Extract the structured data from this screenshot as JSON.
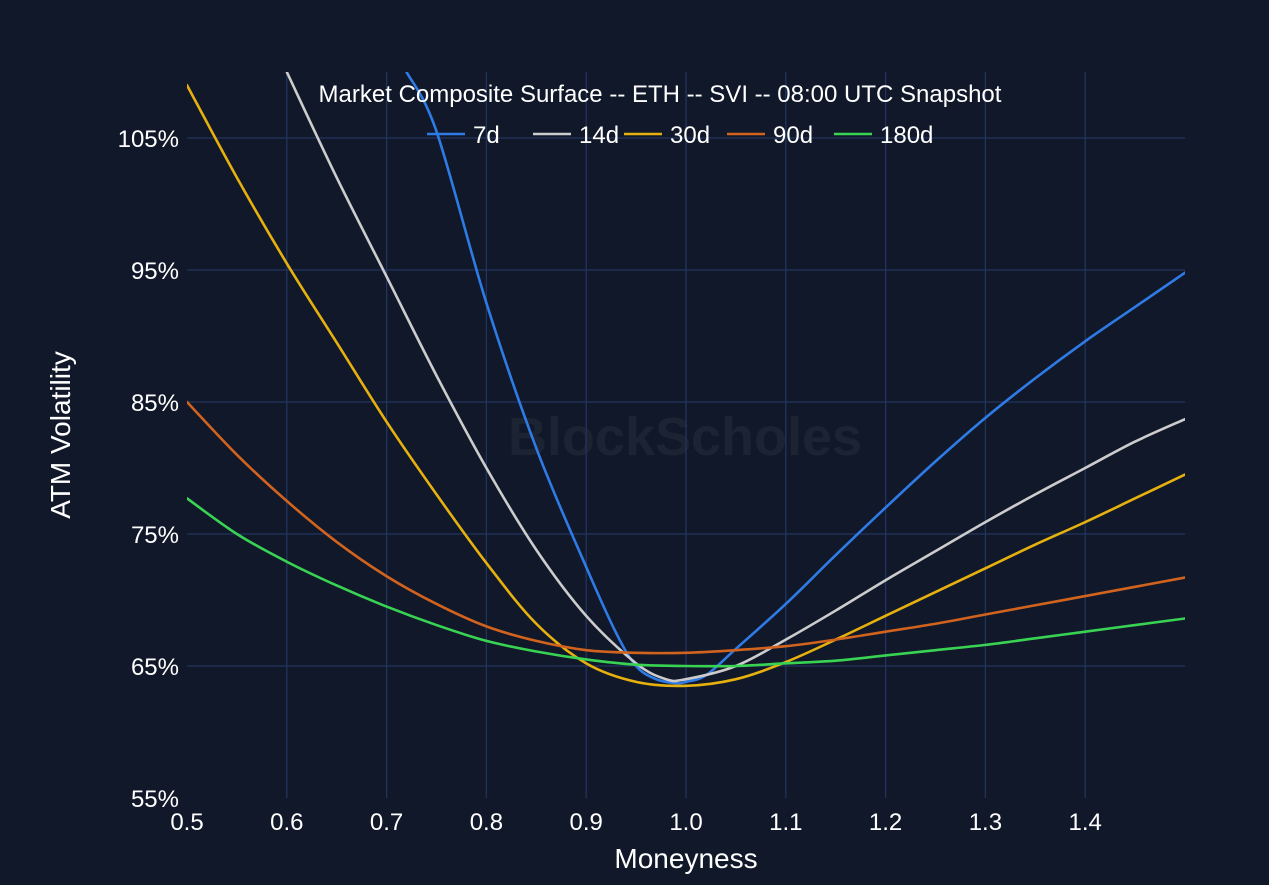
{
  "chart_data": {
    "type": "line",
    "title": "Market Composite Surface -- ETH -- SVI -- 08:00 UTC Snapshot",
    "xlabel": "Moneyness",
    "ylabel": "ATM Volatility",
    "xlim": [
      0.5,
      1.5
    ],
    "ylim": [
      55,
      110
    ],
    "xticks": [
      "0.5",
      "0.6",
      "0.7",
      "0.8",
      "0.9",
      "1.0",
      "1.1",
      "1.2",
      "1.3",
      "1.4"
    ],
    "xtick_values": [
      0.5,
      0.6,
      0.7,
      0.8,
      0.9,
      1.0,
      1.1,
      1.2,
      1.3,
      1.4
    ],
    "yticks": [
      "55%",
      "65%",
      "75%",
      "85%",
      "95%",
      "105%"
    ],
    "ytick_values": [
      55,
      65,
      75,
      85,
      95,
      105
    ],
    "grid": true,
    "legend_position": "top-center",
    "watermark": "BlockScholes",
    "colors": {
      "background": "#101829",
      "grid": "#22345e"
    },
    "series": [
      {
        "name": "7d",
        "color": "#2f7be6",
        "x": [
          0.72,
          0.75,
          0.8,
          0.85,
          0.9,
          0.93,
          0.95,
          0.97,
          0.99,
          1.0,
          1.02,
          1.05,
          1.1,
          1.15,
          1.2,
          1.25,
          1.3,
          1.35,
          1.4,
          1.45,
          1.5
        ],
        "y": [
          110,
          105.5,
          92.5,
          81.5,
          72.5,
          67.5,
          65.0,
          64.0,
          63.7,
          63.8,
          64.3,
          66.3,
          69.7,
          73.4,
          77.0,
          80.5,
          83.8,
          86.8,
          89.6,
          92.2,
          94.8
        ]
      },
      {
        "name": "14d",
        "color": "#cccccc",
        "x": [
          0.6,
          0.65,
          0.7,
          0.75,
          0.8,
          0.85,
          0.9,
          0.95,
          0.98,
          1.0,
          1.05,
          1.1,
          1.15,
          1.2,
          1.25,
          1.3,
          1.35,
          1.4,
          1.45,
          1.5
        ],
        "y": [
          110,
          102.0,
          94.5,
          87.0,
          80.0,
          73.8,
          68.8,
          65.2,
          64.0,
          64.0,
          65.0,
          67.0,
          69.2,
          71.5,
          73.7,
          75.9,
          78.0,
          80.0,
          82.0,
          83.7
        ]
      },
      {
        "name": "30d",
        "color": "#e6b10f",
        "x": [
          0.5,
          0.55,
          0.6,
          0.65,
          0.7,
          0.75,
          0.8,
          0.85,
          0.9,
          0.95,
          1.0,
          1.05,
          1.1,
          1.15,
          1.2,
          1.25,
          1.3,
          1.35,
          1.4,
          1.45,
          1.5
        ],
        "y": [
          109.0,
          102.0,
          95.5,
          89.5,
          83.5,
          78.0,
          72.8,
          68.2,
          65.2,
          63.8,
          63.5,
          64.0,
          65.3,
          67.0,
          68.8,
          70.6,
          72.4,
          74.2,
          75.9,
          77.7,
          79.5
        ]
      },
      {
        "name": "90d",
        "color": "#d2631e",
        "x": [
          0.5,
          0.55,
          0.6,
          0.65,
          0.7,
          0.75,
          0.8,
          0.85,
          0.9,
          0.95,
          1.0,
          1.05,
          1.1,
          1.15,
          1.2,
          1.25,
          1.3,
          1.35,
          1.4,
          1.45,
          1.5
        ],
        "y": [
          85.0,
          81.0,
          77.5,
          74.4,
          71.8,
          69.7,
          68.0,
          66.9,
          66.2,
          66.0,
          66.0,
          66.2,
          66.5,
          67.0,
          67.6,
          68.2,
          68.9,
          69.6,
          70.3,
          71.0,
          71.7
        ]
      },
      {
        "name": "180d",
        "color": "#39d353",
        "x": [
          0.5,
          0.55,
          0.6,
          0.65,
          0.7,
          0.75,
          0.8,
          0.85,
          0.9,
          0.95,
          1.0,
          1.05,
          1.1,
          1.15,
          1.2,
          1.25,
          1.3,
          1.35,
          1.4,
          1.45,
          1.5
        ],
        "y": [
          77.7,
          75.0,
          72.9,
          71.1,
          69.5,
          68.1,
          66.9,
          66.1,
          65.5,
          65.1,
          65.0,
          65.0,
          65.2,
          65.4,
          65.8,
          66.2,
          66.6,
          67.1,
          67.6,
          68.1,
          68.6
        ]
      }
    ]
  }
}
